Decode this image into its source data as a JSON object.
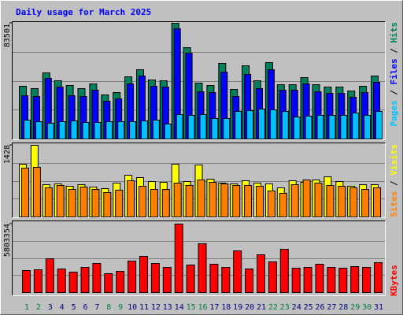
{
  "title": "Daily usage for March 2025",
  "legend_separator": " / ",
  "categories": [
    "1",
    "2",
    "3",
    "4",
    "5",
    "6",
    "7",
    "8",
    "9",
    "10",
    "11",
    "12",
    "13",
    "14",
    "15",
    "16",
    "17",
    "18",
    "19",
    "20",
    "21",
    "22",
    "23",
    "24",
    "25",
    "26",
    "27",
    "28",
    "29",
    "30",
    "31"
  ],
  "category_colors": [
    "#008040",
    "#008040",
    "#000080",
    "#000080",
    "#000080",
    "#000080",
    "#000080",
    "#008040",
    "#008040",
    "#000080",
    "#000080",
    "#000080",
    "#000080",
    "#000080",
    "#008040",
    "#008040",
    "#000080",
    "#000080",
    "#000080",
    "#000080",
    "#000080",
    "#008040",
    "#008040",
    "#000080",
    "#000080",
    "#000080",
    "#000080",
    "#000080",
    "#008040",
    "#008040",
    "#000080"
  ],
  "chart_data": [
    {
      "type": "bar",
      "ylim": [
        0,
        83501
      ],
      "yticks": [
        83501
      ],
      "series": [
        {
          "name": "Hits",
          "color": "#00805c",
          "values": [
            38060,
            36350,
            47710,
            42030,
            38620,
            36350,
            39760,
            31810,
            33510,
            44870,
            49980,
            42600,
            42030,
            83501,
            65890,
            40330,
            38620,
            54530,
            35780,
            52820,
            42030,
            55100,
            39190,
            39190,
            44300,
            39190,
            37490,
            37490,
            34650,
            38060,
            45440
          ]
        },
        {
          "name": "Files",
          "color": "#0000ff",
          "values": [
            31240,
            30670,
            43740,
            37490,
            31240,
            30670,
            35220,
            27260,
            28970,
            39760,
            45440,
            38060,
            37490,
            79520,
            61910,
            34080,
            33510,
            48280,
            30670,
            46580,
            36350,
            49980,
            35220,
            35220,
            39760,
            34080,
            32940,
            32940,
            30100,
            33510,
            40900
          ]
        },
        {
          "name": "Pages",
          "color": "#00c0ff",
          "values": [
            13630,
            12500,
            11360,
            12500,
            13060,
            11930,
            11930,
            12500,
            12500,
            12500,
            13060,
            13630,
            10790,
            17610,
            17040,
            17610,
            14770,
            14770,
            19880,
            20450,
            21580,
            21020,
            19880,
            15900,
            16470,
            17040,
            17040,
            17040,
            18740,
            17040,
            19880
          ]
        }
      ]
    },
    {
      "type": "bar",
      "ylim": [
        0,
        1428
      ],
      "yticks": [
        1428
      ],
      "series": [
        {
          "name": "Visits",
          "color": "#ffff00",
          "values": [
            1051,
            1428,
            643,
            659,
            612,
            643,
            596,
            565,
            675,
            832,
            785,
            706,
            690,
            1051,
            706,
            1036,
            753,
            675,
            659,
            722,
            675,
            659,
            581,
            722,
            690,
            738,
            800,
            706,
            612,
            643,
            643
          ]
        },
        {
          "name": "Sites",
          "color": "#ff8000",
          "values": [
            973,
            989,
            581,
            628,
            549,
            596,
            549,
            486,
            534,
            722,
            612,
            549,
            549,
            675,
            628,
            738,
            690,
            659,
            628,
            628,
            612,
            518,
            471,
            643,
            738,
            675,
            628,
            612,
            581,
            549,
            581
          ]
        }
      ]
    },
    {
      "type": "bar",
      "ylim": [
        0,
        5803354
      ],
      "yticks": [
        5803354
      ],
      "series": [
        {
          "name": "KBytes",
          "color": "#ff0000",
          "values": [
            1867700,
            1934400,
            2868300,
            2001200,
            1734300,
            2134600,
            2468100,
            1600900,
            1801000,
            2668200,
            3068400,
            2468100,
            2134600,
            5803354,
            2334700,
            4135700,
            2401400,
            2134600,
            3535400,
            2001200,
            3201800,
            2601500,
            3668800,
            2067900,
            2134600,
            2401400,
            2134600,
            2067900,
            2201300,
            2134600,
            2534800
          ]
        }
      ]
    }
  ]
}
